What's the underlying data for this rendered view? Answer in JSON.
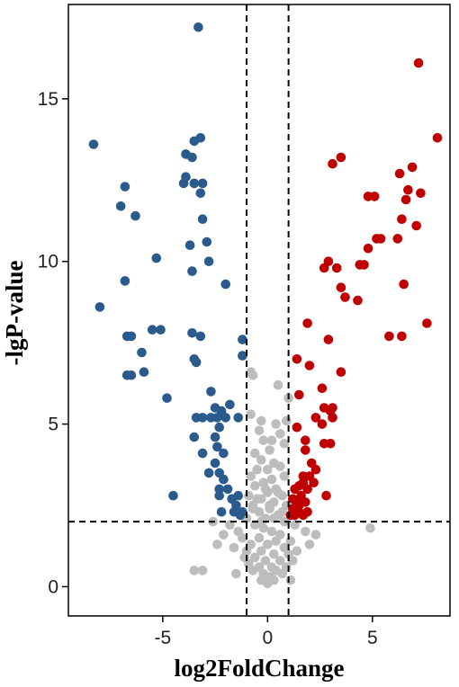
{
  "chart_data": {
    "type": "scatter",
    "title": "",
    "xlabel": "log2FoldChange",
    "ylabel": "-lgP-value",
    "xlim": [
      -9.5,
      8.7
    ],
    "ylim": [
      -0.9,
      17.9
    ],
    "xticks": [
      -5,
      0,
      5
    ],
    "xtick_labels": [
      "-5",
      "0",
      "5"
    ],
    "yticks": [
      0,
      5,
      10,
      15
    ],
    "ytick_labels": [
      "0",
      "5",
      "10",
      "15"
    ],
    "grid": false,
    "thresholds": {
      "log2fc": [
        -1,
        1
      ],
      "neg_log10_p": 2
    },
    "colors": {
      "down": "#2b5a8c",
      "up": "#c00000",
      "ns": "#bdbdbd"
    },
    "series": [
      {
        "key": "down",
        "color": "#2b5a8c",
        "points": [
          [
            -3.3,
            17.2
          ],
          [
            -8.3,
            13.6
          ],
          [
            -3.2,
            13.8
          ],
          [
            -3.5,
            13.7
          ],
          [
            -3.9,
            13.3
          ],
          [
            -3.6,
            13.2
          ],
          [
            -6.8,
            12.3
          ],
          [
            -3.9,
            12.6
          ],
          [
            -4.0,
            12.4
          ],
          [
            -3.5,
            12.4
          ],
          [
            -3.1,
            12.4
          ],
          [
            -3.2,
            12.1
          ],
          [
            -6.3,
            11.4
          ],
          [
            -7.0,
            11.7
          ],
          [
            -3.1,
            11.3
          ],
          [
            -3.7,
            10.5
          ],
          [
            -2.9,
            10.6
          ],
          [
            -5.3,
            10.1
          ],
          [
            -2.8,
            10.0
          ],
          [
            -3.6,
            9.7
          ],
          [
            -6.8,
            9.4
          ],
          [
            -2.0,
            9.3
          ],
          [
            -8.0,
            8.6
          ],
          [
            -5.5,
            7.9
          ],
          [
            -5.1,
            7.9
          ],
          [
            -6.5,
            7.7
          ],
          [
            -6.7,
            7.7
          ],
          [
            -3.6,
            7.8
          ],
          [
            -3.2,
            7.7
          ],
          [
            -1.2,
            7.6
          ],
          [
            -6.0,
            7.2
          ],
          [
            -1.2,
            7.1
          ],
          [
            -3.5,
            7.0
          ],
          [
            -3.4,
            6.9
          ],
          [
            -6.5,
            6.5
          ],
          [
            -6.7,
            6.5
          ],
          [
            -5.9,
            6.6
          ],
          [
            -2.7,
            6.0
          ],
          [
            -4.8,
            5.8
          ],
          [
            -1.8,
            5.6
          ],
          [
            -2.5,
            5.5
          ],
          [
            -2.2,
            5.4
          ],
          [
            -2.0,
            5.2
          ],
          [
            -3.4,
            5.2
          ],
          [
            -3.1,
            5.2
          ],
          [
            -2.7,
            5.2
          ],
          [
            -2.4,
            5.2
          ],
          [
            -1.4,
            5.2
          ],
          [
            -2.3,
            4.9
          ],
          [
            -2.5,
            4.6
          ],
          [
            -3.5,
            4.6
          ],
          [
            -2.4,
            4.3
          ],
          [
            -2.1,
            4.1
          ],
          [
            -3.1,
            4.1
          ],
          [
            -2.5,
            3.8
          ],
          [
            -2.3,
            3.5
          ],
          [
            -2.1,
            3.3
          ],
          [
            -2.8,
            3.5
          ],
          [
            -2.3,
            3.0
          ],
          [
            -1.9,
            3.0
          ],
          [
            -2.3,
            2.8
          ],
          [
            -1.7,
            2.7
          ],
          [
            -1.4,
            2.8
          ],
          [
            -1.5,
            2.5
          ],
          [
            -1.2,
            2.3
          ],
          [
            -1.3,
            2.2
          ],
          [
            -1.6,
            2.3
          ],
          [
            -2.2,
            2.3
          ],
          [
            -4.5,
            2.8
          ]
        ]
      },
      {
        "key": "up",
        "color": "#c00000",
        "points": [
          [
            7.2,
            16.1
          ],
          [
            8.1,
            13.8
          ],
          [
            3.5,
            13.2
          ],
          [
            3.1,
            13.0
          ],
          [
            6.9,
            12.9
          ],
          [
            6.3,
            12.7
          ],
          [
            7.3,
            12.1
          ],
          [
            6.7,
            12.2
          ],
          [
            5.1,
            12.0
          ],
          [
            4.8,
            12.0
          ],
          [
            6.6,
            11.9
          ],
          [
            6.4,
            11.3
          ],
          [
            7.1,
            11.1
          ],
          [
            6.2,
            10.7
          ],
          [
            5.4,
            10.7
          ],
          [
            5.2,
            10.7
          ],
          [
            4.8,
            10.4
          ],
          [
            2.9,
            10.0
          ],
          [
            2.7,
            9.8
          ],
          [
            3.3,
            9.8
          ],
          [
            4.6,
            9.9
          ],
          [
            4.4,
            9.9
          ],
          [
            3.5,
            9.2
          ],
          [
            6.5,
            9.3
          ],
          [
            3.7,
            8.9
          ],
          [
            4.3,
            8.8
          ],
          [
            1.9,
            8.1
          ],
          [
            7.6,
            8.1
          ],
          [
            5.8,
            7.7
          ],
          [
            6.4,
            7.7
          ],
          [
            2.9,
            7.6
          ],
          [
            1.4,
            7.0
          ],
          [
            2.0,
            6.8
          ],
          [
            3.5,
            6.6
          ],
          [
            2.6,
            6.1
          ],
          [
            1.5,
            5.9
          ],
          [
            3.1,
            5.5
          ],
          [
            2.7,
            5.5
          ],
          [
            3.0,
            5.4
          ],
          [
            2.3,
            5.2
          ],
          [
            3.1,
            5.2
          ],
          [
            2.6,
            5.0
          ],
          [
            1.4,
            4.9
          ],
          [
            1.8,
            4.5
          ],
          [
            2.7,
            4.4
          ],
          [
            3.0,
            4.4
          ],
          [
            1.8,
            4.2
          ],
          [
            2.1,
            3.8
          ],
          [
            2.3,
            3.6
          ],
          [
            2.0,
            3.4
          ],
          [
            1.7,
            3.4
          ],
          [
            1.7,
            3.2
          ],
          [
            1.5,
            3.1
          ],
          [
            2.2,
            3.2
          ],
          [
            1.3,
            3.0
          ],
          [
            1.9,
            3.0
          ],
          [
            1.6,
            2.8
          ],
          [
            2.8,
            2.8
          ],
          [
            1.4,
            2.6
          ],
          [
            1.8,
            2.6
          ],
          [
            1.2,
            2.4
          ],
          [
            1.5,
            2.3
          ],
          [
            1.9,
            2.3
          ],
          [
            1.3,
            2.2
          ],
          [
            1.7,
            2.2
          ],
          [
            1.1,
            2.2
          ],
          [
            1.5,
            2.5
          ],
          [
            1.2,
            2.7
          ]
        ]
      },
      {
        "key": "ns",
        "color": "#bdbdbd",
        "points": [
          [
            -0.8,
            6.6
          ],
          [
            -0.7,
            6.5
          ],
          [
            0.5,
            6.2
          ],
          [
            1.0,
            5.8
          ],
          [
            -0.8,
            5.3
          ],
          [
            -0.3,
            5.1
          ],
          [
            0.9,
            5.1
          ],
          [
            0.4,
            5.0
          ],
          [
            -0.4,
            4.8
          ],
          [
            0.6,
            4.7
          ],
          [
            0.2,
            4.5
          ],
          [
            -0.2,
            4.5
          ],
          [
            0.8,
            4.4
          ],
          [
            -0.6,
            4.1
          ],
          [
            0.1,
            4.2
          ],
          [
            -0.3,
            3.9
          ],
          [
            0.3,
            3.8
          ],
          [
            0.6,
            3.7
          ],
          [
            -0.5,
            3.6
          ],
          [
            0.0,
            3.6
          ],
          [
            -0.8,
            3.4
          ],
          [
            0.8,
            3.4
          ],
          [
            0.2,
            3.3
          ],
          [
            -0.2,
            3.2
          ],
          [
            -0.6,
            3.1
          ],
          [
            0.4,
            3.0
          ],
          [
            0.0,
            2.9
          ],
          [
            -0.9,
            2.8
          ],
          [
            0.7,
            2.8
          ],
          [
            -0.3,
            2.7
          ],
          [
            0.3,
            2.6
          ],
          [
            -0.7,
            2.5
          ],
          [
            0.9,
            2.5
          ],
          [
            0.1,
            2.4
          ],
          [
            -0.4,
            2.3
          ],
          [
            0.5,
            2.2
          ],
          [
            -0.1,
            2.1
          ],
          [
            -1.0,
            2.1
          ],
          [
            0.8,
            2.0
          ],
          [
            -2.6,
            2.0
          ],
          [
            -1.8,
            1.9
          ],
          [
            -1.4,
            1.7
          ],
          [
            -2.1,
            1.6
          ],
          [
            -1.2,
            1.5
          ],
          [
            1.3,
            1.9
          ],
          [
            1.8,
            1.7
          ],
          [
            2.3,
            1.6
          ],
          [
            1.1,
            1.4
          ],
          [
            2.0,
            1.3
          ],
          [
            -1.6,
            1.2
          ],
          [
            1.4,
            1.1
          ],
          [
            -1.1,
            0.9
          ],
          [
            1.2,
            0.8
          ],
          [
            -2.4,
            1.3
          ],
          [
            4.9,
            1.8
          ],
          [
            -3.5,
            0.5
          ],
          [
            -3.1,
            0.5
          ],
          [
            -1.5,
            0.4
          ],
          [
            1.1,
            0.2
          ],
          [
            -0.6,
            1.9
          ],
          [
            -0.2,
            1.8
          ],
          [
            0.2,
            1.7
          ],
          [
            0.6,
            1.6
          ],
          [
            -0.4,
            1.5
          ],
          [
            0.4,
            1.4
          ],
          [
            -0.8,
            1.3
          ],
          [
            0.0,
            1.3
          ],
          [
            0.8,
            1.2
          ],
          [
            -0.3,
            1.1
          ],
          [
            0.3,
            1.0
          ],
          [
            -0.6,
            0.9
          ],
          [
            0.6,
            0.8
          ],
          [
            -0.1,
            0.8
          ],
          [
            0.2,
            0.6
          ],
          [
            -0.4,
            0.6
          ],
          [
            0.4,
            0.5
          ],
          [
            -0.2,
            0.4
          ],
          [
            0.1,
            0.3
          ],
          [
            0.0,
            0.1
          ],
          [
            -0.3,
            0.2
          ],
          [
            0.3,
            0.2
          ],
          [
            -0.7,
            0.5
          ],
          [
            0.7,
            0.4
          ],
          [
            -0.9,
            0.7
          ],
          [
            0.9,
            0.6
          ],
          [
            -1.0,
            1.1
          ],
          [
            1.0,
            1.0
          ],
          [
            -0.5,
            2.7
          ],
          [
            0.5,
            2.9
          ],
          [
            -0.1,
            3.0
          ],
          [
            0.1,
            2.5
          ],
          [
            -0.3,
            2.0
          ],
          [
            0.3,
            2.1
          ],
          [
            -0.7,
            2.4
          ],
          [
            0.7,
            2.3
          ]
        ]
      }
    ]
  }
}
